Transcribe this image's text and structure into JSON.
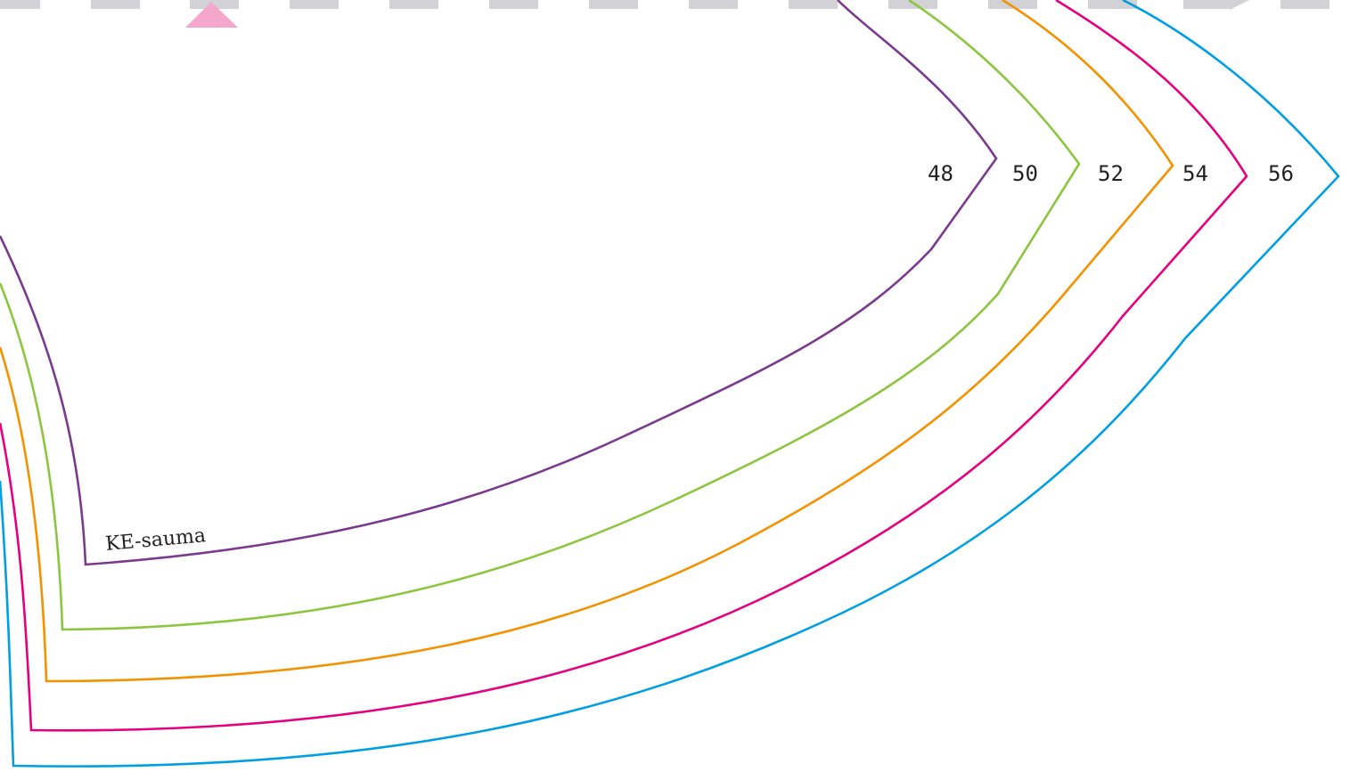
{
  "seam_label": "KE-sauma",
  "sizes": [
    {
      "label": "48",
      "color": "#7a3a8e"
    },
    {
      "label": "50",
      "color": "#8cc63f"
    },
    {
      "label": "52",
      "color": "#f39200"
    },
    {
      "label": "54",
      "color": "#e6007e"
    },
    {
      "label": "56",
      "color": "#009fe3"
    }
  ],
  "fold_edge": {
    "dash_color": "#d2d2d6",
    "marker_color": "#f4a6cb"
  }
}
